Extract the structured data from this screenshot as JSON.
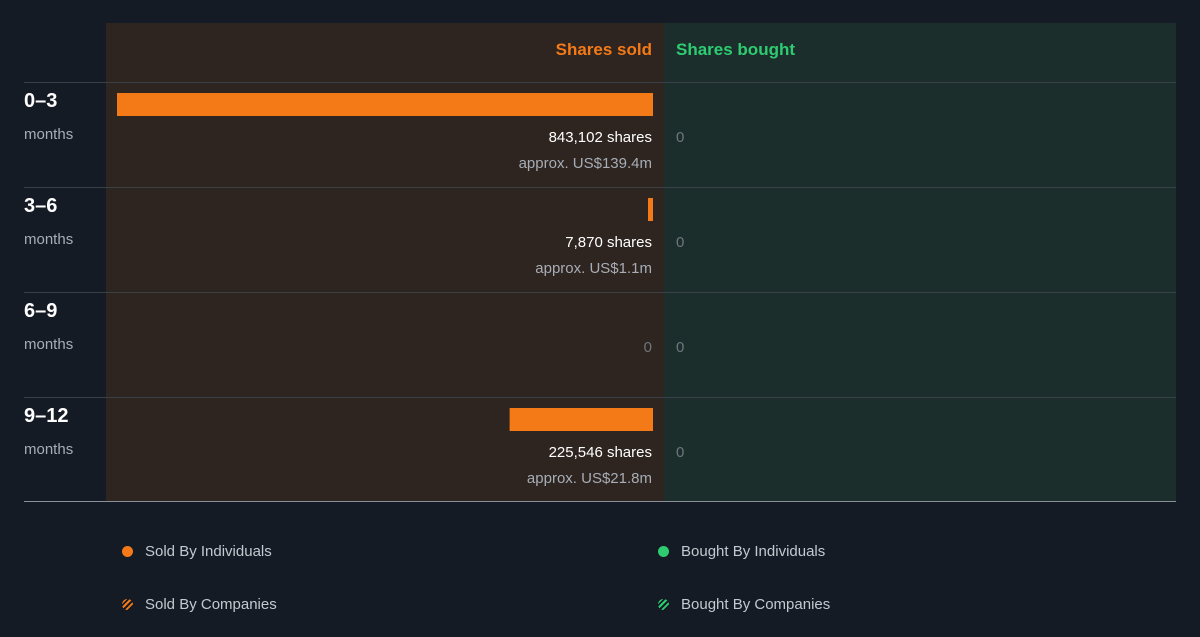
{
  "chart_data": {
    "type": "bar",
    "orientation": "horizontal",
    "headers": {
      "sold": "Shares sold",
      "bought": "Shares bought"
    },
    "rows": [
      {
        "period": "0–3",
        "unit": "months",
        "sold_shares": 843102,
        "sold_label": "843,102 shares",
        "sold_value": "approx. US$139.4m",
        "bought_shares": 0,
        "bought_label": "0"
      },
      {
        "period": "3–6",
        "unit": "months",
        "sold_shares": 7870,
        "sold_label": "7,870 shares",
        "sold_value": "approx. US$1.1m",
        "bought_shares": 0,
        "bought_label": "0"
      },
      {
        "period": "6–9",
        "unit": "months",
        "sold_shares": 0,
        "sold_label": "0",
        "sold_value": "",
        "bought_shares": 0,
        "bought_label": "0"
      },
      {
        "period": "9–12",
        "unit": "months",
        "sold_shares": 225546,
        "sold_label": "225,546 shares",
        "sold_value": "approx. US$21.8m",
        "bought_shares": 0,
        "bought_label": "0"
      }
    ],
    "legend": [
      {
        "label": "Sold By Individuals",
        "marker": "dot",
        "color": "#f47a17"
      },
      {
        "label": "Bought By Individuals",
        "marker": "dot",
        "color": "#2ecc71"
      },
      {
        "label": "Sold By Companies",
        "marker": "hatched-dot",
        "color": "#f47a17"
      },
      {
        "label": "Bought By Companies",
        "marker": "hatched-dot",
        "color": "#2ecc71"
      }
    ],
    "colors": {
      "sold": "#f47a17",
      "bought": "#2ecc71",
      "sold_panel": "#2e2420",
      "bought_panel": "#1b2e2c",
      "background": "#151b24"
    }
  }
}
